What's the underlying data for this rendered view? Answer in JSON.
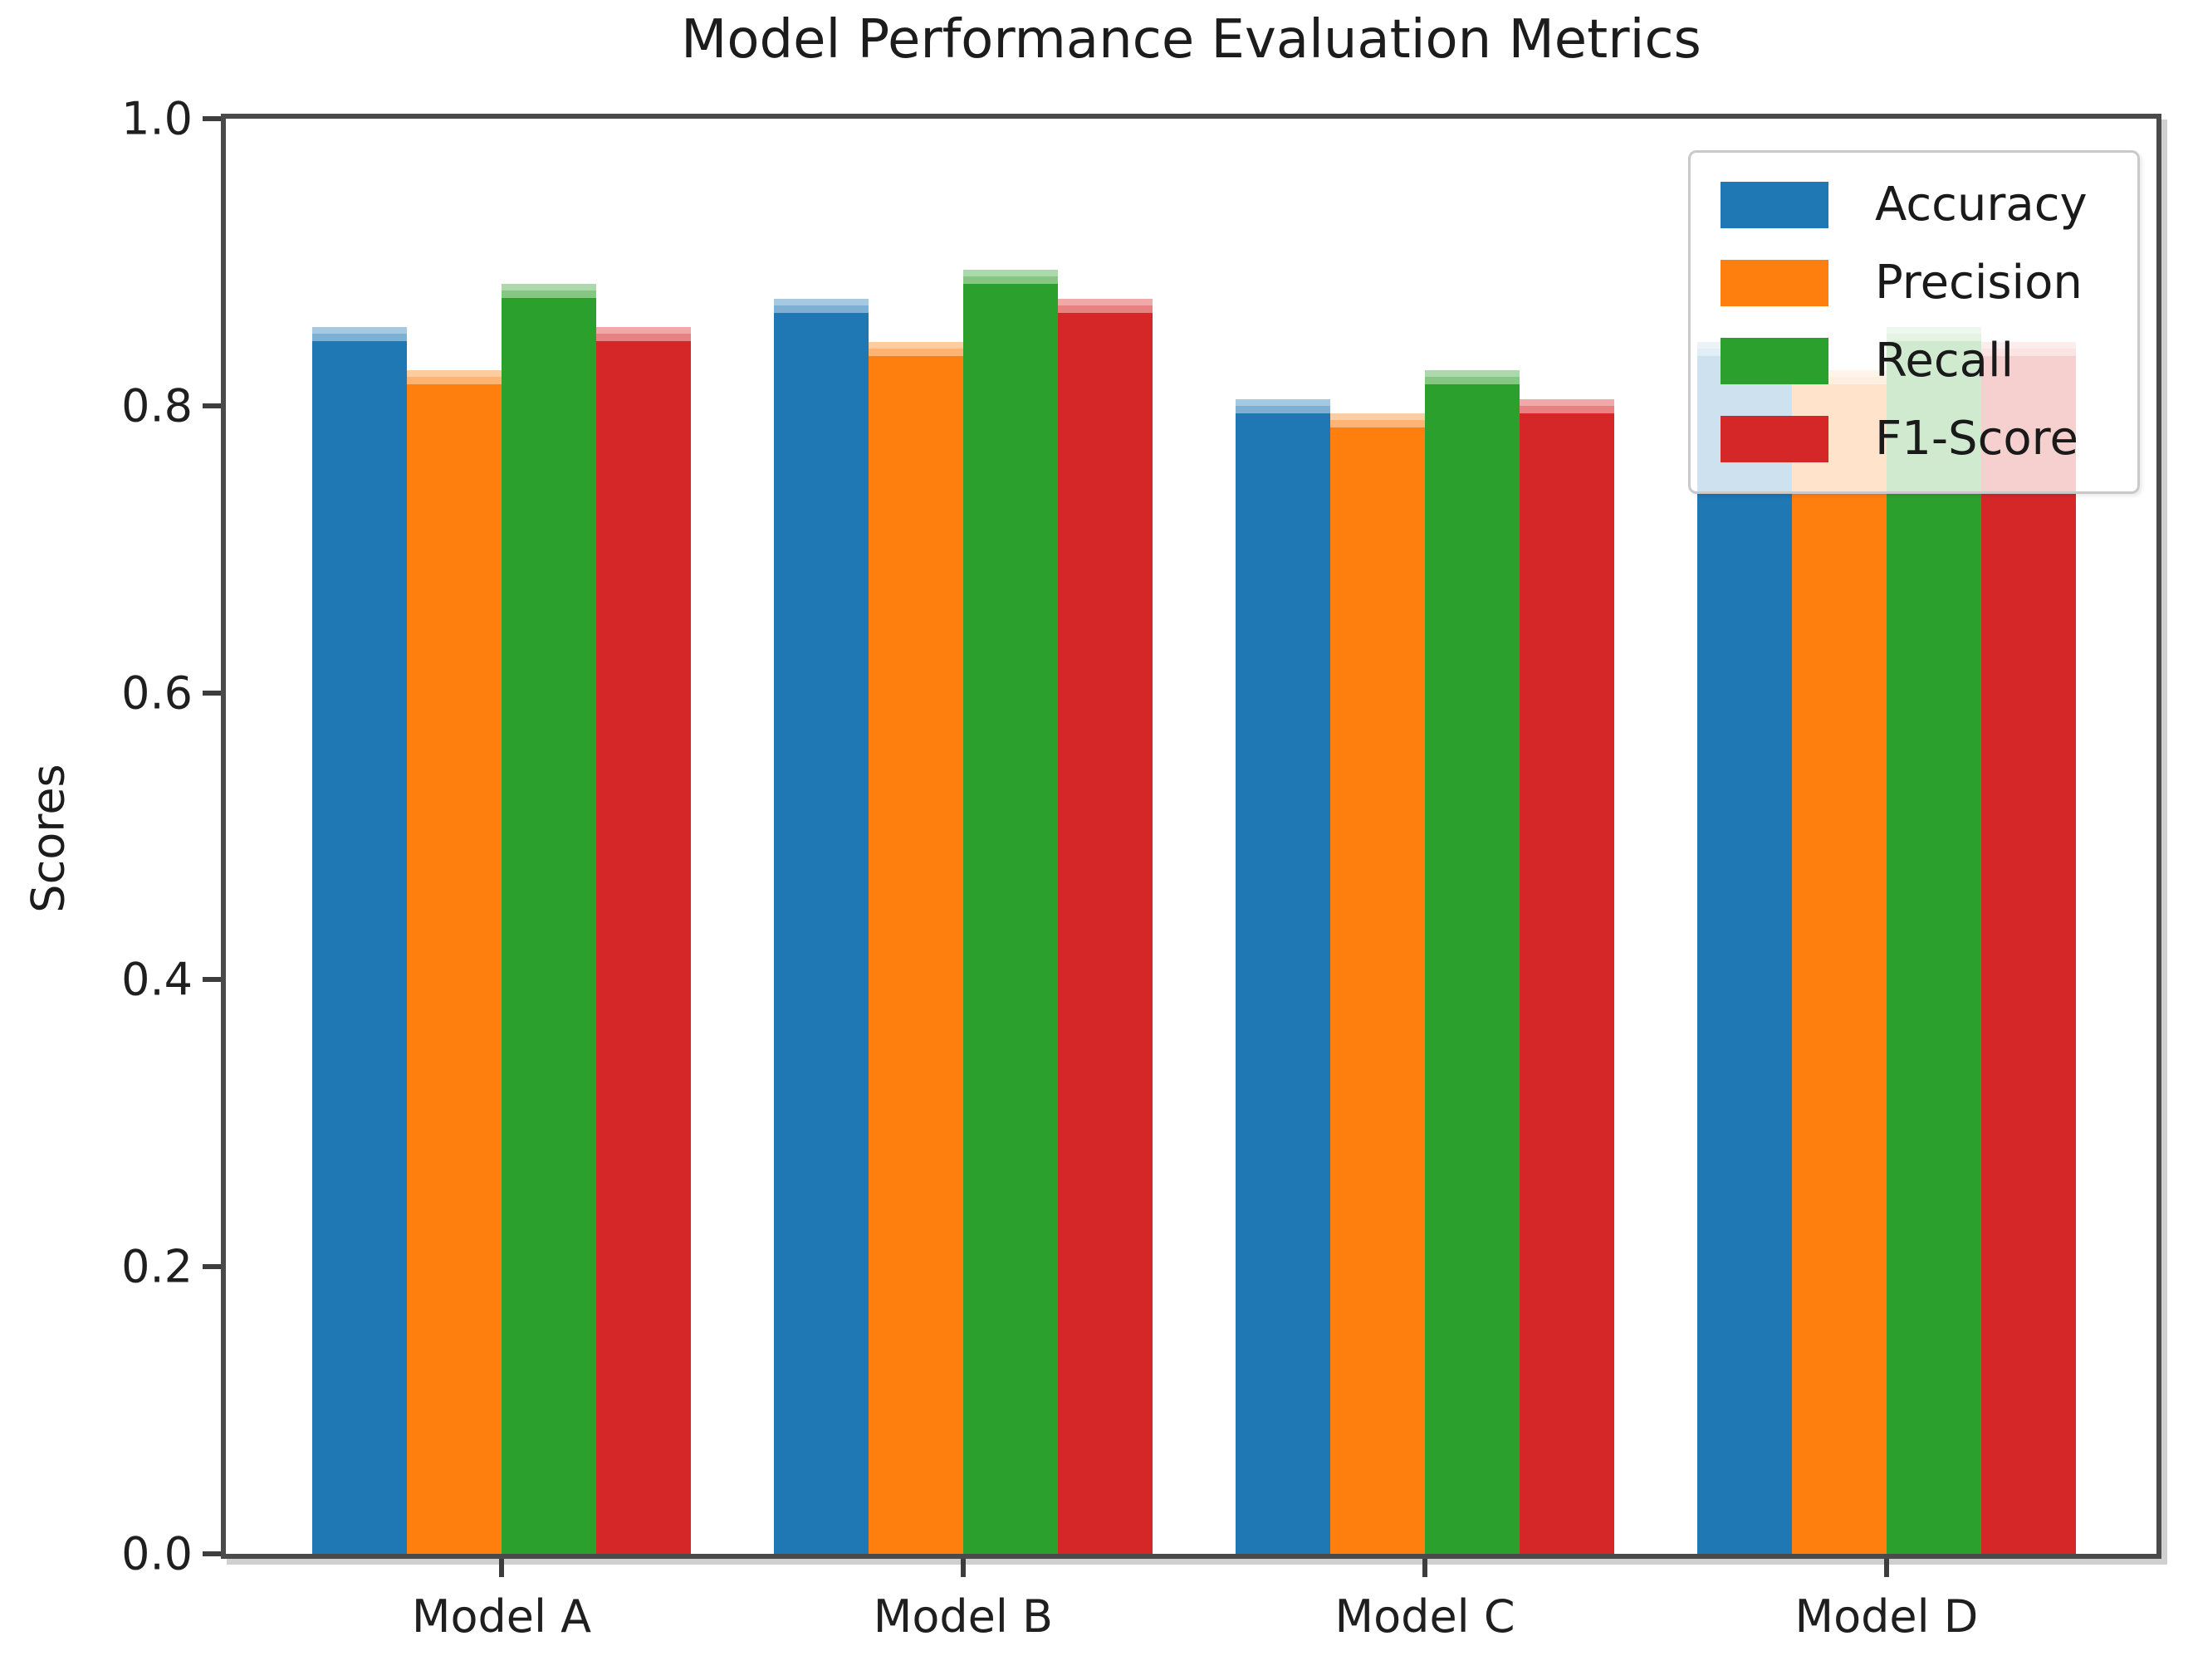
{
  "chart_data": {
    "type": "bar",
    "title": "Model Performance Evaluation Metrics",
    "xlabel": "",
    "ylabel": "Scores",
    "categories": [
      "Model A",
      "Model B",
      "Model C",
      "Model D"
    ],
    "series": [
      {
        "name": "Accuracy",
        "color": "#1f77b4",
        "values": [
          0.85,
          0.87,
          0.8,
          0.84
        ]
      },
      {
        "name": "Precision",
        "color": "#ff7f0e",
        "values": [
          0.82,
          0.84,
          0.79,
          0.82
        ]
      },
      {
        "name": "Recall",
        "color": "#2ca02c",
        "values": [
          0.88,
          0.89,
          0.82,
          0.85
        ]
      },
      {
        "name": "F1-Score",
        "color": "#d62728",
        "values": [
          0.85,
          0.87,
          0.8,
          0.84
        ]
      }
    ],
    "ylim": [
      0.0,
      1.0
    ],
    "yticks": [
      "0.0",
      "0.2",
      "0.4",
      "0.6",
      "0.8",
      "1.0"
    ],
    "grid": false,
    "legend_position": "upper right"
  }
}
